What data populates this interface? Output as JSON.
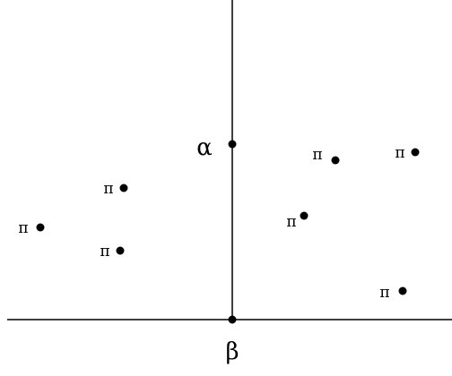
{
  "diagram": {
    "top_label": "α",
    "bottom_label": "β",
    "point_label": "π",
    "point_count": 7
  }
}
